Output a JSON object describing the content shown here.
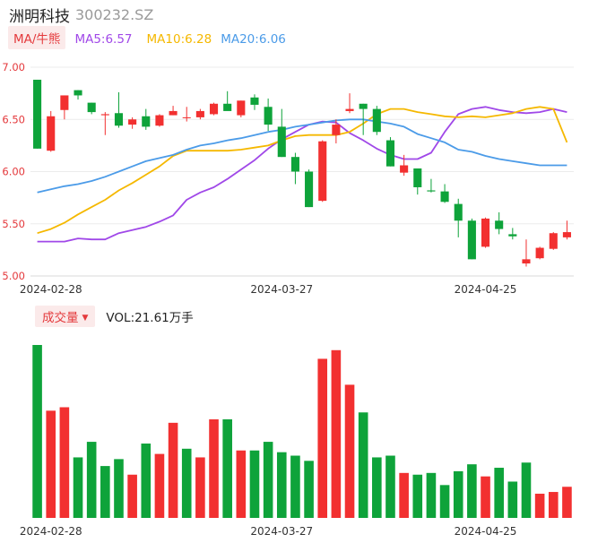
{
  "header": {
    "name": "洲明科技",
    "code": "300232.SZ"
  },
  "ma_bar": {
    "toggle": "MA/牛熊",
    "items": [
      {
        "label": "MA5:6.57",
        "color": "#a048e8"
      },
      {
        "label": "MA10:6.28",
        "color": "#f5b800"
      },
      {
        "label": "MA20:6.06",
        "color": "#4b9be8"
      }
    ]
  },
  "volume_bar": {
    "toggle": "成交量",
    "label": "VOL:21.61万手"
  },
  "colors": {
    "up": "#f23030",
    "down": "#0ea33a",
    "grid": "#ececec",
    "axis_text": "#e4393c"
  },
  "chart_data": [
    {
      "type": "candlestick",
      "title": "",
      "y_ticks": [
        "7.00",
        "6.50",
        "6.00",
        "5.50",
        "5.00"
      ],
      "ylim": [
        5.0,
        7.0
      ],
      "x_ticks": [
        {
          "index": 1,
          "label": "2024-02-28"
        },
        {
          "index": 18,
          "label": "2024-03-27"
        },
        {
          "index": 33,
          "label": "2024-04-25"
        }
      ],
      "grid": true,
      "candles": [
        {
          "o": 6.88,
          "h": 6.88,
          "l": 6.22,
          "c": 6.22
        },
        {
          "o": 6.2,
          "h": 6.58,
          "l": 6.19,
          "c": 6.53
        },
        {
          "o": 6.59,
          "h": 6.73,
          "l": 6.5,
          "c": 6.73
        },
        {
          "o": 6.78,
          "h": 6.78,
          "l": 6.69,
          "c": 6.73
        },
        {
          "o": 6.66,
          "h": 6.66,
          "l": 6.55,
          "c": 6.57
        },
        {
          "o": 6.54,
          "h": 6.57,
          "l": 6.35,
          "c": 6.55
        },
        {
          "o": 6.56,
          "h": 6.76,
          "l": 6.42,
          "c": 6.44
        },
        {
          "o": 6.45,
          "h": 6.52,
          "l": 6.41,
          "c": 6.5
        },
        {
          "o": 6.53,
          "h": 6.6,
          "l": 6.4,
          "c": 6.43
        },
        {
          "o": 6.44,
          "h": 6.55,
          "l": 6.43,
          "c": 6.54
        },
        {
          "o": 6.54,
          "h": 6.63,
          "l": 6.54,
          "c": 6.58
        },
        {
          "o": 6.52,
          "h": 6.62,
          "l": 6.48,
          "c": 6.52
        },
        {
          "o": 6.52,
          "h": 6.6,
          "l": 6.5,
          "c": 6.58
        },
        {
          "o": 6.55,
          "h": 6.66,
          "l": 6.54,
          "c": 6.65
        },
        {
          "o": 6.65,
          "h": 6.77,
          "l": 6.6,
          "c": 6.58
        },
        {
          "o": 6.54,
          "h": 6.68,
          "l": 6.52,
          "c": 6.68
        },
        {
          "o": 6.71,
          "h": 6.74,
          "l": 6.59,
          "c": 6.64
        },
        {
          "o": 6.62,
          "h": 6.7,
          "l": 6.39,
          "c": 6.45
        },
        {
          "o": 6.43,
          "h": 6.6,
          "l": 6.14,
          "c": 6.14
        },
        {
          "o": 6.14,
          "h": 6.18,
          "l": 5.88,
          "c": 6.0
        },
        {
          "o": 6.0,
          "h": 6.02,
          "l": 5.66,
          "c": 5.66
        },
        {
          "o": 5.72,
          "h": 6.3,
          "l": 5.71,
          "c": 6.29
        },
        {
          "o": 6.35,
          "h": 6.5,
          "l": 6.27,
          "c": 6.45
        },
        {
          "o": 6.58,
          "h": 6.75,
          "l": 6.56,
          "c": 6.6
        },
        {
          "o": 6.65,
          "h": 6.65,
          "l": 6.35,
          "c": 6.6
        },
        {
          "o": 6.6,
          "h": 6.63,
          "l": 6.35,
          "c": 6.38
        },
        {
          "o": 6.3,
          "h": 6.33,
          "l": 6.05,
          "c": 6.05
        },
        {
          "o": 5.99,
          "h": 6.16,
          "l": 5.96,
          "c": 6.06
        },
        {
          "o": 6.03,
          "h": 6.03,
          "l": 5.78,
          "c": 5.85
        },
        {
          "o": 5.82,
          "h": 5.93,
          "l": 5.8,
          "c": 5.81
        },
        {
          "o": 5.81,
          "h": 5.88,
          "l": 5.7,
          "c": 5.71
        },
        {
          "o": 5.69,
          "h": 5.74,
          "l": 5.37,
          "c": 5.53
        },
        {
          "o": 5.53,
          "h": 5.55,
          "l": 5.16,
          "c": 5.16
        },
        {
          "o": 5.28,
          "h": 5.56,
          "l": 5.27,
          "c": 5.55
        },
        {
          "o": 5.53,
          "h": 5.61,
          "l": 5.4,
          "c": 5.45
        },
        {
          "o": 5.4,
          "h": 5.46,
          "l": 5.35,
          "c": 5.38
        },
        {
          "o": 5.12,
          "h": 5.35,
          "l": 5.09,
          "c": 5.16
        },
        {
          "o": 5.17,
          "h": 5.28,
          "l": 5.16,
          "c": 5.27
        },
        {
          "o": 5.26,
          "h": 5.42,
          "l": 5.25,
          "c": 5.41
        },
        {
          "o": 5.37,
          "h": 5.53,
          "l": 5.35,
          "c": 5.42
        }
      ],
      "series": [
        {
          "name": "MA5",
          "values": [
            5.33,
            5.33,
            5.33,
            5.36,
            5.35,
            5.35,
            5.41,
            5.44,
            5.47,
            5.52,
            5.58,
            5.73,
            5.8,
            5.85,
            5.93,
            6.02,
            6.11,
            6.22,
            6.31,
            6.38,
            6.45,
            6.48,
            6.47,
            6.37,
            6.3,
            6.22,
            6.16,
            6.12,
            6.12,
            6.18,
            6.38,
            6.55,
            6.6,
            6.62,
            6.59,
            6.57,
            6.56,
            6.57,
            6.6,
            6.57
          ]
        },
        {
          "name": "MA10",
          "values": [
            5.41,
            5.45,
            5.51,
            5.59,
            5.66,
            5.73,
            5.82,
            5.89,
            5.97,
            6.05,
            6.15,
            6.2,
            6.2,
            6.2,
            6.2,
            6.21,
            6.23,
            6.25,
            6.3,
            6.34,
            6.35,
            6.35,
            6.35,
            6.38,
            6.46,
            6.55,
            6.6,
            6.6,
            6.57,
            6.55,
            6.53,
            6.52,
            6.53,
            6.52,
            6.54,
            6.56,
            6.6,
            6.62,
            6.6,
            6.28
          ]
        },
        {
          "name": "MA20",
          "values": [
            5.8,
            5.83,
            5.86,
            5.88,
            5.91,
            5.95,
            6.0,
            6.05,
            6.1,
            6.13,
            6.16,
            6.21,
            6.25,
            6.27,
            6.3,
            6.32,
            6.35,
            6.38,
            6.4,
            6.43,
            6.45,
            6.47,
            6.49,
            6.5,
            6.5,
            6.48,
            6.46,
            6.43,
            6.36,
            6.32,
            6.28,
            6.21,
            6.19,
            6.15,
            6.12,
            6.1,
            6.08,
            6.06,
            6.06,
            6.06
          ]
        }
      ]
    },
    {
      "type": "bar",
      "title": "",
      "series_name": "成交量",
      "values": [
        100,
        62,
        64,
        35,
        44,
        30,
        34,
        25,
        43,
        37,
        55,
        40,
        35,
        57,
        57,
        39,
        39,
        44,
        38,
        36,
        33,
        92,
        97,
        77,
        61,
        35,
        36,
        26,
        25,
        26,
        19,
        27,
        31,
        24,
        29,
        21,
        32,
        14,
        15,
        18
      ],
      "colors": [
        "down",
        "up",
        "up",
        "down",
        "down",
        "down",
        "down",
        "up",
        "down",
        "up",
        "up",
        "down",
        "up",
        "up",
        "down",
        "up",
        "down",
        "down",
        "down",
        "down",
        "down",
        "up",
        "up",
        "up",
        "down",
        "down",
        "down",
        "up",
        "down",
        "down",
        "down",
        "down",
        "down",
        "up",
        "down",
        "down",
        "down",
        "up",
        "up",
        "up"
      ],
      "x_ticks": [
        {
          "index": 1,
          "label": "2024-02-28"
        },
        {
          "index": 18,
          "label": "2024-03-27"
        },
        {
          "index": 33,
          "label": "2024-04-25"
        }
      ]
    }
  ]
}
